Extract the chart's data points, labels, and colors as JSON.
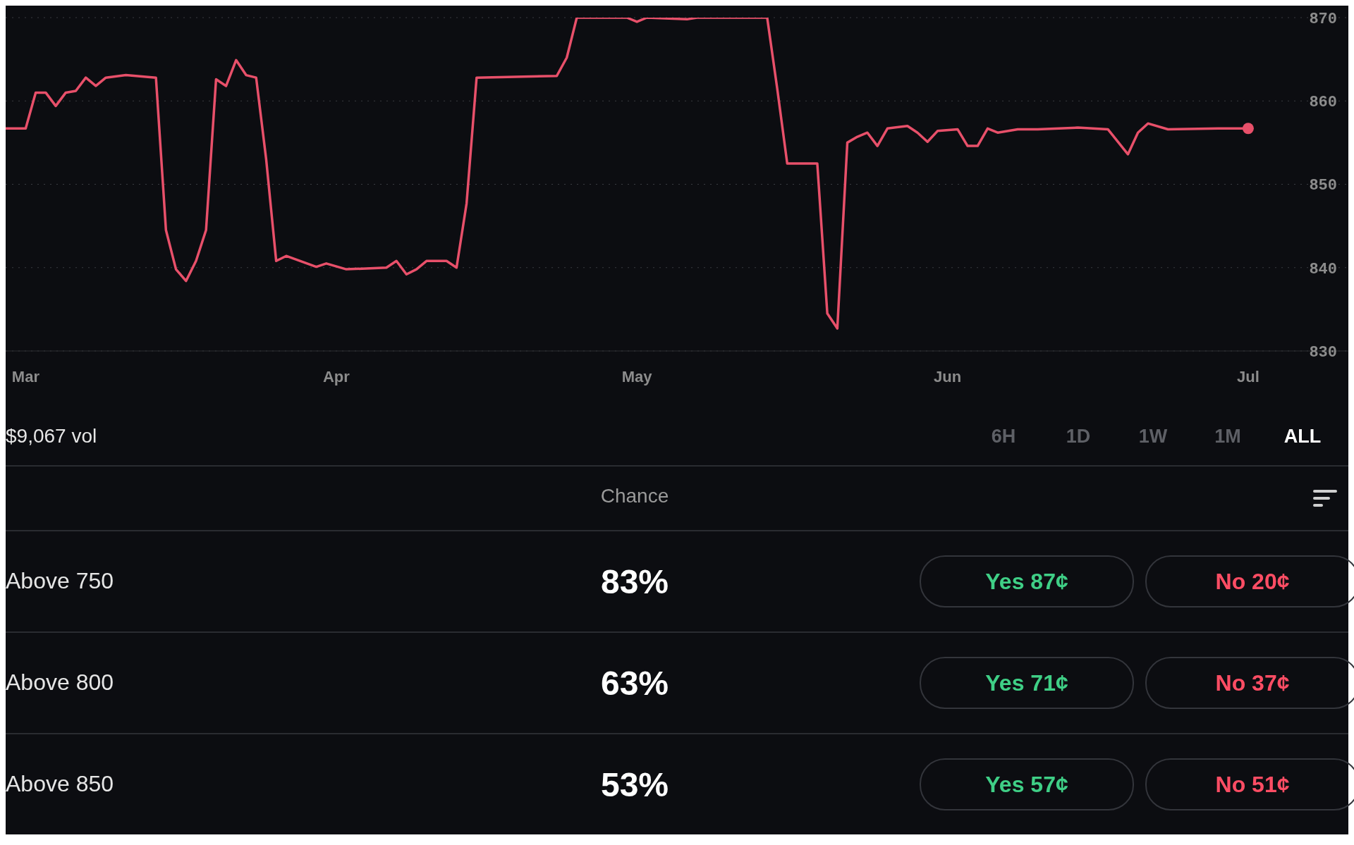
{
  "chart_data": [
    {
      "type": "line",
      "color": "#e8506a",
      "x": [
        "--02-27",
        "--03-01",
        "--03-02",
        "--03-03",
        "--03-04",
        "--03-05",
        "--03-06",
        "--03-07",
        "--03-08",
        "--03-09",
        "--03-11",
        "--03-14",
        "--03-15",
        "--03-16",
        "--03-17",
        "--03-18",
        "--03-19",
        "--03-20",
        "--03-21",
        "--03-22",
        "--03-23",
        "--03-24",
        "--03-25",
        "--03-26",
        "--03-27",
        "--03-30",
        "--03-31",
        "--04-02",
        "--04-06",
        "--04-07",
        "--04-08",
        "--04-09",
        "--04-10",
        "--04-12",
        "--04-13",
        "--04-14",
        "--04-15",
        "--04-23",
        "--04-24",
        "--04-25",
        "--04-30",
        "--05-01",
        "--05-02",
        "--05-06",
        "--05-07",
        "--05-14",
        "--05-15",
        "--05-16",
        "--05-19",
        "--05-20",
        "--05-21",
        "--05-22",
        "--05-23",
        "--05-24",
        "--05-25",
        "--05-26",
        "--05-28",
        "--05-29",
        "--05-30",
        "--05-31",
        "--06-02",
        "--06-03",
        "--06-04",
        "--06-05",
        "--06-06",
        "--06-08",
        "--06-10",
        "--06-14",
        "--06-17",
        "--06-18",
        "--06-19",
        "--06-20",
        "--06-21",
        "--06-23",
        "--06-28",
        "--07-01"
      ],
      "values": [
        856.7,
        856.7,
        861,
        861,
        859.4,
        861,
        861.2,
        862.8,
        861.8,
        862.8,
        863.1,
        862.8,
        844.5,
        839.8,
        838.4,
        840.8,
        844.5,
        862.6,
        861.8,
        864.9,
        863.1,
        862.8,
        853,
        840.8,
        841.4,
        840.1,
        840.5,
        839.8,
        840,
        840.8,
        839.2,
        839.8,
        840.8,
        840.8,
        840,
        847.7,
        862.8,
        863,
        865.2,
        870,
        870,
        869.5,
        870,
        869.8,
        870,
        870,
        861.5,
        852.5,
        852.5,
        834.5,
        832.7,
        855,
        855.7,
        856.2,
        854.6,
        856.7,
        857,
        856.2,
        855.1,
        856.4,
        856.6,
        854.6,
        854.6,
        856.7,
        856.2,
        856.6,
        856.6,
        856.8,
        856.6,
        855.1,
        853.6,
        856.2,
        857.3,
        856.6,
        856.7,
        856.7
      ],
      "xlim": [
        "--02-27",
        "--07-11"
      ],
      "xticks": [
        {
          "value": "--03-01",
          "label": "Mar"
        },
        {
          "value": "--04-01",
          "label": "Apr"
        },
        {
          "value": "--05-01",
          "label": "May"
        },
        {
          "value": "--06-01",
          "label": "Jun"
        },
        {
          "value": "--07-01",
          "label": "Jul"
        }
      ],
      "ylim": [
        830,
        870
      ],
      "yticks": [
        830,
        840,
        850,
        860,
        870
      ],
      "grid": "y",
      "marker": "none",
      "line_style": "solid"
    },
    {
      "type": "other",
      "annotations": [
        "$9,067 vol",
        "6H",
        "1D",
        "1W",
        "1M",
        "ALL",
        "Chance",
        "Above 750",
        "83%",
        "Yes 87¢",
        "No 20¢",
        "Above 800",
        "63%",
        "Yes 71¢",
        "No 37¢",
        "Above 850",
        "53%",
        "Yes 57¢",
        "No 51¢"
      ]
    }
  ]
}
